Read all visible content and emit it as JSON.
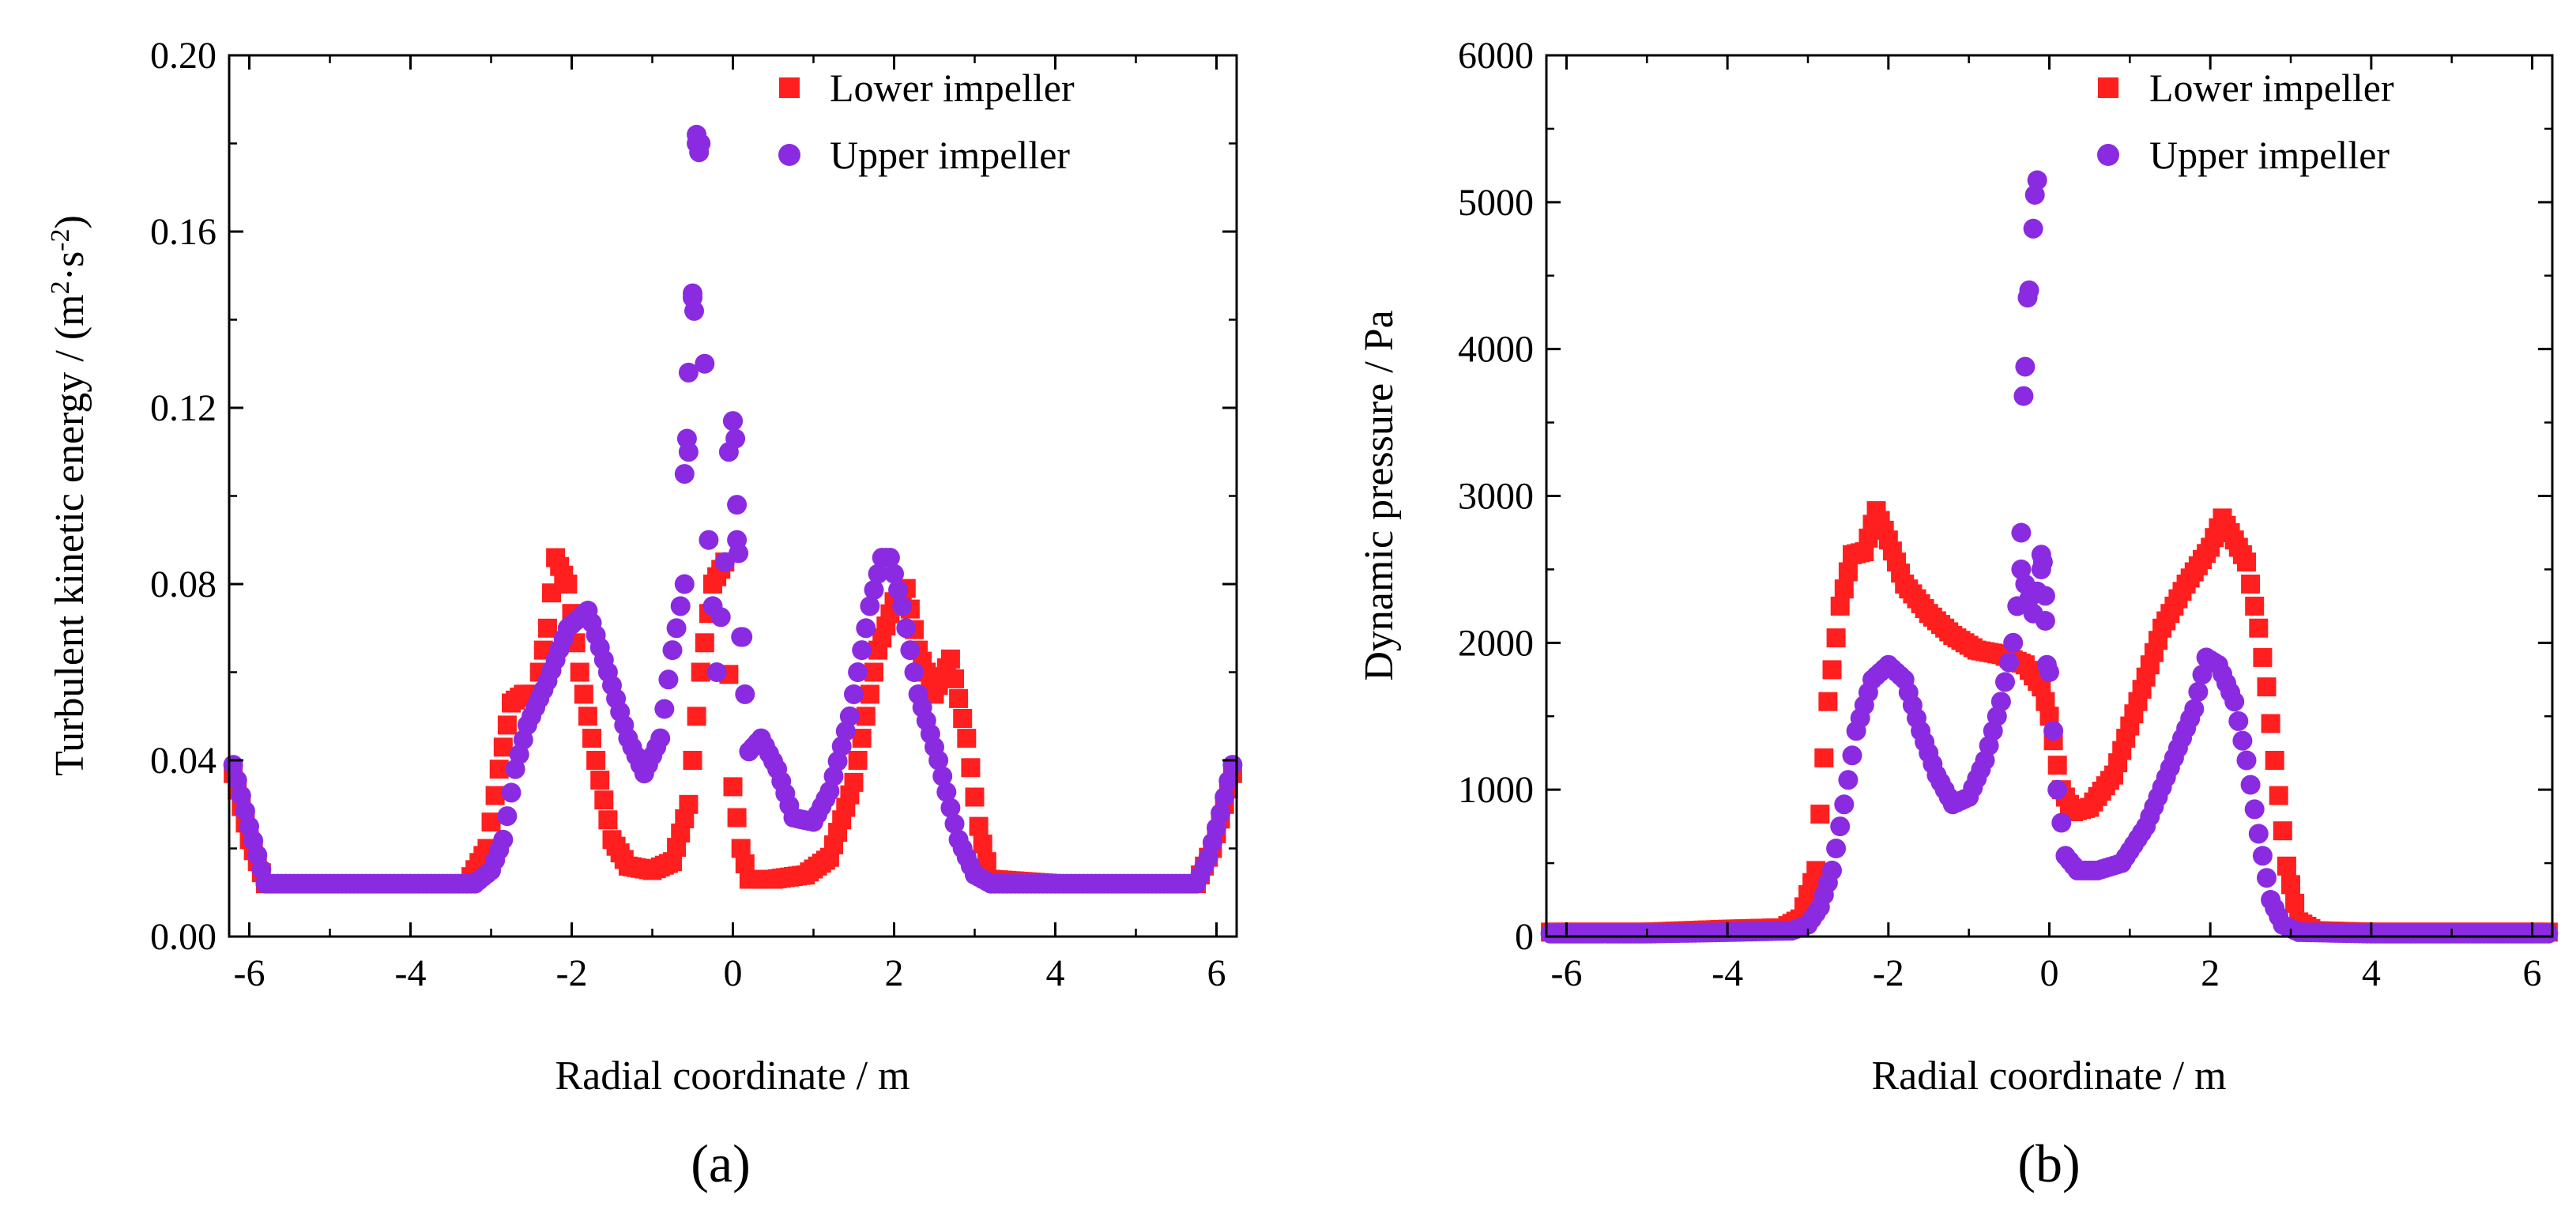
{
  "colors": {
    "lower": "#ff1f1f",
    "upper": "#8a2be2",
    "axis": "#000000"
  },
  "chart_data": [
    {
      "type": "scatter",
      "panel": "a",
      "caption": "(a)",
      "title": "",
      "xlabel": "Radial coordinate / m",
      "ylabel": "Turbulent kinetic energy / (m²·s⁻²)",
      "ylabel_parts": {
        "main": "Turbulent kinetic energy / (m",
        "exp1": "2",
        "mid": "·s",
        "exp2": "-2",
        "end": ")"
      },
      "xlim": [
        -6.25,
        6.25
      ],
      "ylim": [
        0,
        0.2
      ],
      "xticks": [
        -6,
        -4,
        -2,
        0,
        2,
        4,
        6
      ],
      "xtick_labels": [
        "-6",
        "-4",
        "-2",
        "0",
        "2",
        "4",
        "6"
      ],
      "yticks": [
        0,
        0.04,
        0.08,
        0.12,
        0.16,
        0.2
      ],
      "ytick_labels": [
        "0.00",
        "0.04",
        "0.08",
        "0.12",
        "0.16",
        "0.20"
      ],
      "legend_position": "top-right",
      "series": [
        {
          "name": "Lower impeller",
          "marker": "square",
          "color": "#ff1f1f",
          "anchors": [
            [
              -6.2,
              0.037
            ],
            [
              -6.0,
              0.022
            ],
            [
              -5.8,
              0.012
            ],
            [
              -5.0,
              0.012
            ],
            [
              -4.0,
              0.012
            ],
            [
              -3.3,
              0.012
            ],
            [
              -3.05,
              0.02
            ],
            [
              -2.9,
              0.038
            ],
            [
              -2.75,
              0.053
            ],
            [
              -2.6,
              0.055
            ],
            [
              -2.45,
              0.055
            ],
            [
              -2.3,
              0.07
            ],
            [
              -2.2,
              0.086
            ],
            [
              -2.05,
              0.08
            ],
            [
              -1.9,
              0.06
            ],
            [
              -1.7,
              0.04
            ],
            [
              -1.5,
              0.022
            ],
            [
              -1.3,
              0.016
            ],
            [
              -1.0,
              0.015
            ],
            [
              -0.75,
              0.017
            ],
            [
              -0.55,
              0.03
            ],
            [
              -0.4,
              0.06
            ],
            [
              -0.25,
              0.08
            ],
            [
              -0.1,
              0.085
            ],
            [
              0.0,
              0.034
            ],
            [
              0.1,
              0.02
            ],
            [
              0.2,
              0.013
            ],
            [
              0.5,
              0.013
            ],
            [
              0.9,
              0.014
            ],
            [
              1.2,
              0.018
            ],
            [
              1.5,
              0.035
            ],
            [
              1.8,
              0.065
            ],
            [
              2.0,
              0.076
            ],
            [
              2.15,
              0.079
            ],
            [
              2.3,
              0.065
            ],
            [
              2.5,
              0.055
            ],
            [
              2.7,
              0.063
            ],
            [
              2.9,
              0.045
            ],
            [
              3.05,
              0.025
            ],
            [
              3.2,
              0.013
            ],
            [
              4.0,
              0.012
            ],
            [
              5.0,
              0.012
            ],
            [
              5.75,
              0.012
            ],
            [
              5.95,
              0.02
            ],
            [
              6.1,
              0.03
            ],
            [
              6.2,
              0.037
            ]
          ],
          "spikes": []
        },
        {
          "name": "Upper impeller",
          "marker": "circle",
          "color": "#8a2be2",
          "anchors": [
            [
              -6.2,
              0.039
            ],
            [
              -6.0,
              0.025
            ],
            [
              -5.8,
              0.012
            ],
            [
              -5.0,
              0.012
            ],
            [
              -4.0,
              0.012
            ],
            [
              -3.2,
              0.012
            ],
            [
              -3.0,
              0.015
            ],
            [
              -2.85,
              0.022
            ],
            [
              -2.7,
              0.038
            ],
            [
              -2.55,
              0.048
            ],
            [
              -2.3,
              0.058
            ],
            [
              -2.05,
              0.07
            ],
            [
              -1.8,
              0.074
            ],
            [
              -1.55,
              0.06
            ],
            [
              -1.3,
              0.045
            ],
            [
              -1.1,
              0.037
            ],
            [
              -0.9,
              0.045
            ],
            [
              -0.75,
              0.065
            ],
            [
              -0.6,
              0.08
            ],
            [
              -0.55,
              0.11
            ],
            [
              -0.5,
              0.145
            ],
            [
              -0.45,
              0.18
            ],
            [
              -0.4,
              0.18
            ],
            [
              -0.35,
              0.13
            ],
            [
              -0.3,
              0.09
            ],
            [
              -0.2,
              0.06
            ],
            [
              -0.1,
              0.085
            ],
            [
              -0.05,
              0.11
            ],
            [
              0.0,
              0.117
            ],
            [
              0.05,
              0.09
            ],
            [
              0.1,
              0.068
            ],
            [
              0.2,
              0.042
            ],
            [
              0.35,
              0.045
            ],
            [
              0.55,
              0.038
            ],
            [
              0.75,
              0.027
            ],
            [
              1.0,
              0.026
            ],
            [
              1.2,
              0.033
            ],
            [
              1.45,
              0.05
            ],
            [
              1.7,
              0.075
            ],
            [
              1.85,
              0.086
            ],
            [
              1.95,
              0.086
            ],
            [
              2.1,
              0.075
            ],
            [
              2.3,
              0.055
            ],
            [
              2.55,
              0.04
            ],
            [
              2.8,
              0.022
            ],
            [
              3.0,
              0.014
            ],
            [
              3.2,
              0.012
            ],
            [
              4.0,
              0.012
            ],
            [
              5.0,
              0.012
            ],
            [
              5.75,
              0.012
            ],
            [
              5.9,
              0.018
            ],
            [
              6.05,
              0.028
            ],
            [
              6.2,
              0.039
            ]
          ],
          "spikes": [
            [
              -0.45,
              0.182
            ],
            [
              -0.42,
              0.178
            ],
            [
              -0.5,
              0.146
            ],
            [
              -0.48,
              0.142
            ],
            [
              -0.55,
              0.128
            ],
            [
              -0.57,
              0.113
            ],
            [
              -0.6,
              0.105
            ],
            [
              0.0,
              0.117
            ],
            [
              0.03,
              0.113
            ],
            [
              0.05,
              0.098
            ],
            [
              0.07,
              0.087
            ],
            [
              0.12,
              0.068
            ]
          ]
        }
      ]
    },
    {
      "type": "scatter",
      "panel": "b",
      "caption": "(b)",
      "title": "",
      "xlabel": "Radial coordinate / m",
      "ylabel": "Dynamic pressure / Pa",
      "xlim": [
        -6.25,
        6.25
      ],
      "ylim": [
        0,
        6000
      ],
      "xticks": [
        -6,
        -4,
        -2,
        0,
        2,
        4,
        6
      ],
      "xtick_labels": [
        "-6",
        "-4",
        "-2",
        "0",
        "2",
        "4",
        "6"
      ],
      "yticks": [
        0,
        1000,
        2000,
        3000,
        4000,
        5000,
        6000
      ],
      "ytick_labels": [
        "0",
        "1000",
        "2000",
        "3000",
        "4000",
        "5000",
        "6000"
      ],
      "legend_position": "top-right",
      "series": [
        {
          "name": "Lower impeller",
          "marker": "square",
          "color": "#ff1f1f",
          "anchors": [
            [
              -6.2,
              30
            ],
            [
              -5.0,
              30
            ],
            [
              -4.0,
              50
            ],
            [
              -3.3,
              60
            ],
            [
              -3.1,
              120
            ],
            [
              -2.9,
              450
            ],
            [
              -2.75,
              1600
            ],
            [
              -2.6,
              2250
            ],
            [
              -2.45,
              2600
            ],
            [
              -2.3,
              2620
            ],
            [
              -2.15,
              2900
            ],
            [
              -2.0,
              2700
            ],
            [
              -1.8,
              2400
            ],
            [
              -1.5,
              2200
            ],
            [
              -1.2,
              2050
            ],
            [
              -0.9,
              1950
            ],
            [
              -0.6,
              1920
            ],
            [
              -0.3,
              1850
            ],
            [
              -0.1,
              1700
            ],
            [
              0.0,
              1500
            ],
            [
              0.15,
              1000
            ],
            [
              0.3,
              850
            ],
            [
              0.5,
              880
            ],
            [
              0.8,
              1100
            ],
            [
              1.1,
              1600
            ],
            [
              1.4,
              2100
            ],
            [
              1.7,
              2400
            ],
            [
              2.0,
              2650
            ],
            [
              2.15,
              2850
            ],
            [
              2.3,
              2700
            ],
            [
              2.45,
              2550
            ],
            [
              2.6,
              2100
            ],
            [
              2.7,
              1700
            ],
            [
              2.8,
              1200
            ],
            [
              2.95,
              480
            ],
            [
              3.1,
              100
            ],
            [
              3.3,
              40
            ],
            [
              4.0,
              30
            ],
            [
              5.0,
              30
            ],
            [
              6.2,
              30
            ]
          ],
          "spikes": []
        },
        {
          "name": "Upper impeller",
          "marker": "circle",
          "color": "#8a2be2",
          "anchors": [
            [
              -6.2,
              20
            ],
            [
              -5.0,
              20
            ],
            [
              -4.0,
              30
            ],
            [
              -3.2,
              40
            ],
            [
              -3.0,
              80
            ],
            [
              -2.85,
              200
            ],
            [
              -2.7,
              450
            ],
            [
              -2.55,
              900
            ],
            [
              -2.4,
              1400
            ],
            [
              -2.2,
              1750
            ],
            [
              -2.0,
              1850
            ],
            [
              -1.8,
              1750
            ],
            [
              -1.6,
              1400
            ],
            [
              -1.4,
              1100
            ],
            [
              -1.2,
              900
            ],
            [
              -1.0,
              950
            ],
            [
              -0.8,
              1200
            ],
            [
              -0.6,
              1600
            ],
            [
              -0.45,
              2000
            ],
            [
              -0.35,
              2500
            ],
            [
              -0.2,
              2200
            ],
            [
              -0.1,
              2500
            ],
            [
              0.0,
              1800
            ],
            [
              0.1,
              1000
            ],
            [
              0.2,
              550
            ],
            [
              0.35,
              450
            ],
            [
              0.6,
              450
            ],
            [
              0.9,
              500
            ],
            [
              1.2,
              750
            ],
            [
              1.5,
              1150
            ],
            [
              1.8,
              1550
            ],
            [
              1.95,
              1900
            ],
            [
              2.1,
              1850
            ],
            [
              2.3,
              1600
            ],
            [
              2.45,
              1200
            ],
            [
              2.6,
              700
            ],
            [
              2.75,
              250
            ],
            [
              2.9,
              80
            ],
            [
              3.1,
              30
            ],
            [
              4.0,
              20
            ],
            [
              5.0,
              20
            ],
            [
              6.2,
              20
            ]
          ],
          "spikes": [
            [
              -0.15,
              5150
            ],
            [
              -0.18,
              5050
            ],
            [
              -0.2,
              4820
            ],
            [
              -0.25,
              4400
            ],
            [
              -0.27,
              4350
            ],
            [
              -0.3,
              3880
            ],
            [
              -0.32,
              3680
            ],
            [
              -0.35,
              2750
            ],
            [
              -0.1,
              2600
            ],
            [
              -0.08,
              2550
            ],
            [
              -0.05,
              2320
            ],
            [
              -0.03,
              1850
            ]
          ]
        }
      ]
    }
  ]
}
